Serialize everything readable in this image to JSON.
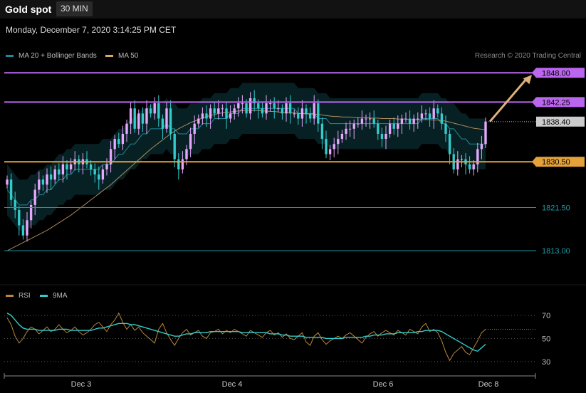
{
  "header": {
    "title": "Gold spot",
    "interval": "30 MIN"
  },
  "datetime": "Monday, December 7, 2020 3:14:25 PM CET",
  "legend": {
    "ma20": {
      "label": "MA 20 + Bollinger Bands",
      "color": "#1f8a99"
    },
    "ma50": {
      "label": "MA 50",
      "color": "#d9a66b"
    }
  },
  "credit": "Research © 2020 Trading Central",
  "rsi_legend": {
    "rsi": {
      "label": "RSI",
      "color": "#b8863b"
    },
    "ma9": {
      "label": "9MA",
      "color": "#33cccc"
    }
  },
  "colors": {
    "resistance": "#bb66ee",
    "support_orange": "#e5a23a",
    "support_teal": "#1f9aa6",
    "current": "#cccccc",
    "candle_up": "#e6a8ff",
    "candle_down": "#33cccc",
    "arrow": "#e0b07a"
  },
  "chart_data": [
    {
      "type": "candlestick",
      "title": "Gold spot",
      "ylim": [
        1807,
        1850
      ],
      "x_labels": [
        "Dec 3",
        "Dec 4",
        "Dec 6",
        "Dec 8"
      ],
      "levels": [
        {
          "value": 1848.0,
          "label": "1848.00",
          "kind": "resistance"
        },
        {
          "value": 1842.25,
          "label": "1842.25",
          "kind": "resistance"
        },
        {
          "value": 1838.4,
          "label": "1838.40",
          "kind": "current"
        },
        {
          "value": 1830.5,
          "label": "1830.50",
          "kind": "support_orange"
        },
        {
          "value": 1821.5,
          "label": "1821.50",
          "kind": "support_teal"
        },
        {
          "value": 1813.0,
          "label": "1813.00",
          "kind": "support_teal"
        }
      ],
      "closes": [
        1827,
        1823,
        1821,
        1818,
        1816,
        1819,
        1822,
        1825,
        1827,
        1826,
        1828,
        1827,
        1829,
        1828,
        1830,
        1829,
        1830,
        1831,
        1830,
        1831,
        1830,
        1829,
        1828,
        1827,
        1829,
        1830,
        1833,
        1835,
        1834,
        1836,
        1838,
        1841,
        1837,
        1840,
        1838,
        1841,
        1840,
        1842,
        1839,
        1837,
        1841,
        1836,
        1831,
        1829,
        1831,
        1833,
        1836,
        1838,
        1839,
        1840,
        1839,
        1841,
        1840,
        1841,
        1841,
        1839,
        1840,
        1841,
        1842,
        1842,
        1840,
        1843,
        1842,
        1841,
        1840,
        1842,
        1842,
        1841,
        1841,
        1840,
        1842,
        1840,
        1840,
        1839,
        1841,
        1840,
        1839,
        1842,
        1838,
        1835,
        1832,
        1833,
        1834,
        1835,
        1836,
        1837,
        1837,
        1838,
        1838,
        1839,
        1839,
        1839,
        1838,
        1836,
        1835,
        1836,
        1838,
        1837,
        1838,
        1839,
        1839,
        1838,
        1839,
        1839,
        1840,
        1840,
        1839,
        1841,
        1840,
        1838,
        1836,
        1832,
        1829,
        1831,
        1831,
        1830,
        1829,
        1830,
        1833,
        1834,
        1838.4
      ],
      "ma20": [
        1825,
        1824,
        1823,
        1822,
        1822,
        1822,
        1823,
        1823,
        1824,
        1824,
        1825,
        1825,
        1826,
        1827,
        1827,
        1828,
        1828,
        1829,
        1829,
        1829,
        1829,
        1829,
        1829,
        1829,
        1830,
        1830,
        1830,
        1831,
        1832,
        1832,
        1833,
        1834,
        1834,
        1835,
        1836,
        1836,
        1837,
        1837,
        1837,
        1837,
        1838,
        1837,
        1837,
        1836,
        1836,
        1836,
        1837,
        1837,
        1837,
        1838,
        1838,
        1838,
        1839,
        1839,
        1839,
        1839,
        1840,
        1840,
        1840,
        1841,
        1841,
        1841,
        1841,
        1841,
        1841,
        1841,
        1841,
        1841,
        1841,
        1841,
        1841,
        1841,
        1841,
        1840,
        1840,
        1840,
        1840,
        1840,
        1839,
        1839,
        1839,
        1838,
        1838,
        1838,
        1838,
        1838,
        1838,
        1838,
        1838,
        1838,
        1838,
        1838,
        1838,
        1838,
        1838,
        1838,
        1838,
        1838,
        1838,
        1838,
        1838,
        1838,
        1838,
        1838,
        1839,
        1839,
        1839,
        1839,
        1839,
        1838,
        1838,
        1837,
        1837,
        1836,
        1835,
        1835,
        1834,
        1834,
        1834,
        1834,
        1834
      ],
      "ma50": [
        1813,
        1813.4,
        1813.8,
        1814.2,
        1814.6,
        1815,
        1815.4,
        1815.8,
        1816.2,
        1816.6,
        1817,
        1817.5,
        1818,
        1818.5,
        1819,
        1819.5,
        1820,
        1820.6,
        1821.2,
        1821.8,
        1822.4,
        1823,
        1823.6,
        1824.2,
        1824.8,
        1825.4,
        1826,
        1826.7,
        1827.4,
        1828.1,
        1828.8,
        1829.5,
        1830.2,
        1830.9,
        1831.6,
        1832.3,
        1833,
        1833.6,
        1834.2,
        1834.8,
        1835.4,
        1836,
        1836.5,
        1837,
        1837.4,
        1837.8,
        1838.2,
        1838.5,
        1838.8,
        1839.1,
        1839.4,
        1839.6,
        1839.8,
        1840,
        1840.1,
        1840.2,
        1840.3,
        1840.4,
        1840.5,
        1840.6,
        1840.6,
        1840.6,
        1840.6,
        1840.6,
        1840.5,
        1840.5,
        1840.4,
        1840.4,
        1840.3,
        1840.2,
        1840.2,
        1840.1,
        1840.1,
        1840,
        1840,
        1839.9,
        1839.9,
        1839.9,
        1839.8,
        1839.7,
        1839.6,
        1839.5,
        1839.4,
        1839.4,
        1839.3,
        1839.3,
        1839.3,
        1839.2,
        1839.2,
        1839.2,
        1839.2,
        1839.1,
        1839.1,
        1839.1,
        1839,
        1839,
        1839,
        1839,
        1838.9,
        1838.9,
        1838.9,
        1838.8,
        1838.8,
        1838.8,
        1838.8,
        1838.8,
        1838.8,
        1838.7,
        1838.7,
        1838.6,
        1838.5,
        1838.3,
        1838.1,
        1837.9,
        1837.7,
        1837.5,
        1837.3,
        1837.1,
        1837,
        1836.9,
        1836.8
      ],
      "bb_width": 5,
      "projection": {
        "from": 1838.4,
        "to": 1848.0
      }
    },
    {
      "type": "line",
      "title": "RSI",
      "ylim": [
        25,
        78
      ],
      "y_ticks": [
        30,
        50,
        70
      ],
      "series": [
        {
          "name": "RSI",
          "values": [
            68,
            62,
            52,
            46,
            50,
            56,
            60,
            58,
            54,
            57,
            60,
            56,
            58,
            62,
            58,
            55,
            57,
            60,
            56,
            53,
            55,
            58,
            62,
            64,
            60,
            56,
            62,
            66,
            72,
            64,
            58,
            62,
            57,
            60,
            55,
            52,
            49,
            46,
            58,
            63,
            55,
            49,
            44,
            50,
            55,
            58,
            53,
            55,
            57,
            52,
            50,
            55,
            56,
            58,
            54,
            57,
            55,
            58,
            56,
            54,
            52,
            57,
            55,
            53,
            51,
            55,
            57,
            53,
            55,
            51,
            54,
            50,
            49,
            52,
            55,
            47,
            44,
            52,
            55,
            49,
            45,
            48,
            50,
            52,
            50,
            53,
            55,
            52,
            49,
            46,
            51,
            54,
            56,
            52,
            55,
            57,
            55,
            53,
            57,
            55,
            53,
            58,
            56,
            54,
            60,
            63,
            56,
            58,
            55,
            48,
            38,
            31,
            37,
            40,
            43,
            38,
            36,
            42,
            48,
            55,
            58
          ]
        },
        {
          "name": "9MA",
          "values": [
            72,
            70,
            66,
            62,
            59,
            58,
            58,
            58,
            57,
            57,
            57,
            57,
            57,
            58,
            58,
            58,
            57,
            57,
            57,
            57,
            57,
            57,
            58,
            59,
            59,
            60,
            61,
            62,
            63,
            63,
            63,
            62,
            62,
            61,
            60,
            59,
            58,
            57,
            56,
            55,
            54,
            53,
            52,
            52,
            53,
            54,
            54,
            55,
            55,
            55,
            55,
            56,
            56,
            56,
            56,
            56,
            56,
            56,
            56,
            55,
            55,
            55,
            55,
            55,
            55,
            55,
            54,
            54,
            54,
            53,
            53,
            52,
            52,
            52,
            52,
            51,
            51,
            51,
            51,
            51,
            50,
            50,
            50,
            50,
            50,
            51,
            51,
            51,
            51,
            51,
            52,
            52,
            53,
            53,
            53,
            54,
            54,
            54,
            55,
            55,
            55,
            55,
            55,
            56,
            56,
            57,
            57,
            57,
            57,
            56,
            54,
            52,
            50,
            48,
            46,
            44,
            42,
            40,
            39,
            42,
            45
          ]
        }
      ]
    }
  ]
}
